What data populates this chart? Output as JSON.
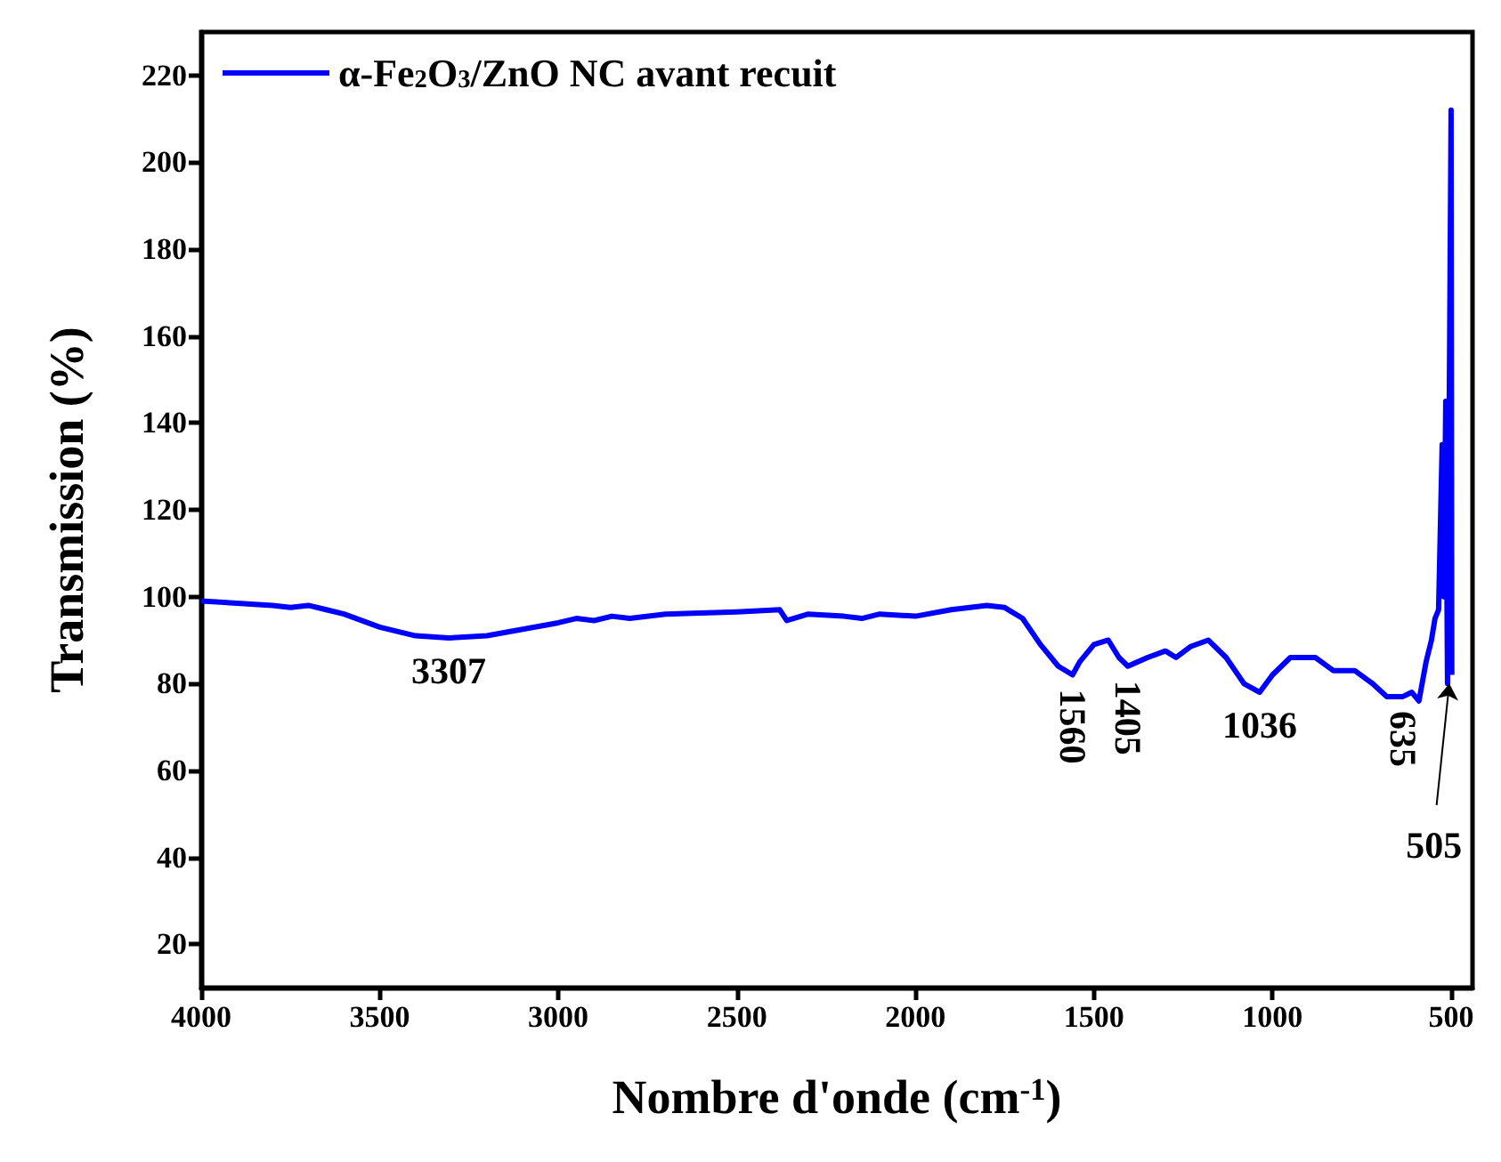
{
  "chart_data": {
    "type": "line",
    "xlabel": "Nombre d'onde (cm$^{-1}$)",
    "ylabel": "Transmission (%)",
    "xlim": [
      4000,
      440
    ],
    "ylim": [
      10,
      230
    ],
    "xticks": [
      4000,
      3500,
      3000,
      2500,
      2000,
      1500,
      1000,
      500
    ],
    "yticks": [
      20,
      40,
      60,
      80,
      100,
      120,
      140,
      160,
      180,
      200,
      220
    ],
    "grid": false,
    "legend": "top left",
    "marker": "none",
    "line_style": "solid",
    "x": [
      4000,
      3900,
      3800,
      3750,
      3700,
      3650,
      3600,
      3500,
      3400,
      3307,
      3200,
      3100,
      3000,
      2950,
      2900,
      2850,
      2800,
      2700,
      2500,
      2380,
      2360,
      2300,
      2200,
      2150,
      2100,
      2000,
      1900,
      1800,
      1750,
      1700,
      1650,
      1600,
      1560,
      1540,
      1500,
      1460,
      1430,
      1405,
      1350,
      1300,
      1270,
      1230,
      1180,
      1130,
      1080,
      1036,
      1000,
      950,
      880,
      830,
      770,
      720,
      680,
      635,
      610,
      590,
      570,
      555,
      545,
      535,
      525,
      520,
      515,
      510,
      500,
      498
    ],
    "series": [
      {
        "name": "α-Fe$_{2}$O$_{3}$/ZnO NC avant recuit",
        "color": "#0000ff",
        "values": [
          99,
          98.5,
          98,
          97.5,
          98,
          97,
          96,
          93,
          91,
          90.5,
          91,
          92.5,
          94,
          95,
          94.5,
          95.5,
          95,
          96,
          96.5,
          97,
          94.5,
          96,
          95.5,
          95,
          96,
          95.5,
          97,
          98,
          97.5,
          95,
          89,
          84,
          82,
          85,
          89,
          90,
          86,
          84,
          86,
          87.5,
          86,
          88.5,
          90,
          86,
          80,
          78,
          82,
          86,
          86,
          83,
          83,
          80,
          77,
          77,
          78,
          76,
          85,
          90,
          95,
          97,
          135,
          100,
          145,
          80,
          212,
          82
        ]
      }
    ],
    "annotations": [
      {
        "text": "3307",
        "x": 3307,
        "y": 90.5
      },
      {
        "text": "1560",
        "x": 1560,
        "y": 82
      },
      {
        "text": "1405",
        "x": 1405,
        "y": 84
      },
      {
        "text": "1036",
        "x": 1036,
        "y": 78
      },
      {
        "text": "635",
        "x": 635,
        "y": 77
      },
      {
        "text": "505",
        "x": 505,
        "y": 80
      }
    ]
  }
}
